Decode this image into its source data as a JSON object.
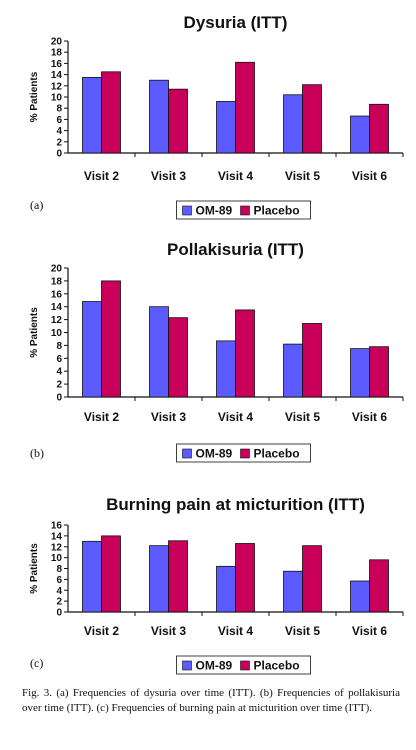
{
  "chart_data": [
    {
      "type": "bar",
      "title": "Dysuria (ITT)",
      "panel_label": "(a)",
      "ylabel": "% Patients",
      "ylim": [
        0,
        20
      ],
      "ytick_step": 2,
      "categories": [
        "Visit 2",
        "Visit 3",
        "Visit 4",
        "Visit 5",
        "Visit 6"
      ],
      "series": [
        {
          "name": "OM-89",
          "color": "#5b5bff",
          "values": [
            13.5,
            13.0,
            9.2,
            10.4,
            6.6
          ]
        },
        {
          "name": "Placebo",
          "color": "#c8005a",
          "values": [
            14.5,
            11.4,
            16.2,
            12.2,
            8.7
          ]
        }
      ],
      "legend_position": "bottom"
    },
    {
      "type": "bar",
      "title": "Pollakisuria (ITT)",
      "panel_label": "(b)",
      "ylabel": "% Patients",
      "ylim": [
        0,
        20
      ],
      "ytick_step": 2,
      "categories": [
        "Visit 2",
        "Visit 3",
        "Visit 4",
        "Visit 5",
        "Visit 6"
      ],
      "series": [
        {
          "name": "OM-89",
          "color": "#5b5bff",
          "values": [
            14.8,
            14.0,
            8.7,
            8.2,
            7.5
          ]
        },
        {
          "name": "Placebo",
          "color": "#c8005a",
          "values": [
            18.0,
            12.3,
            13.5,
            11.4,
            7.8
          ]
        }
      ],
      "legend_position": "bottom"
    },
    {
      "type": "bar",
      "title": "Burning pain at micturition (ITT)",
      "panel_label": "(c)",
      "ylabel": "% Patients",
      "ylim": [
        0,
        16
      ],
      "ytick_step": 2,
      "categories": [
        "Visit 2",
        "Visit 3",
        "Visit 4",
        "Visit 5",
        "Visit 6"
      ],
      "series": [
        {
          "name": "OM-89",
          "color": "#5b5bff",
          "values": [
            13.0,
            12.2,
            8.4,
            7.5,
            5.7
          ]
        },
        {
          "name": "Placebo",
          "color": "#c8005a",
          "values": [
            14.0,
            13.1,
            12.6,
            12.2,
            9.6
          ]
        }
      ],
      "legend_position": "bottom"
    }
  ],
  "caption": "Fig. 3. (a) Frequencies of dysuria over time (ITT). (b) Frequencies of pollakisuria over time (ITT). (c) Frequencies of burning pain at micturition over time (ITT)."
}
